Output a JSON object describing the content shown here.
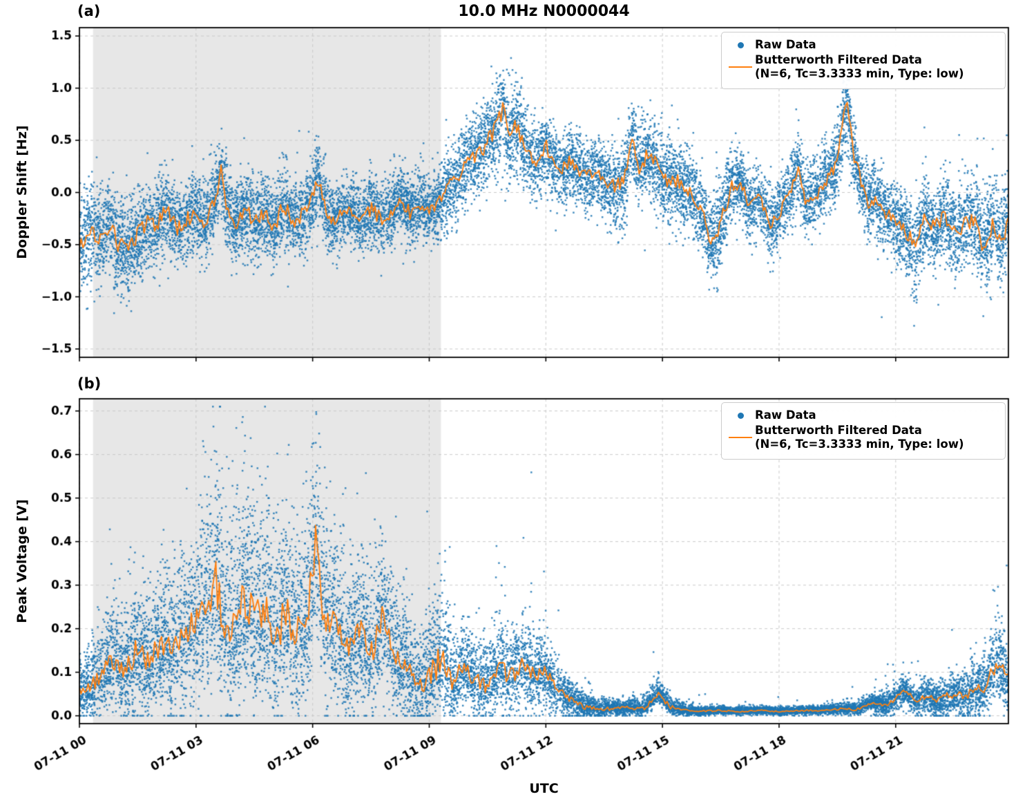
{
  "figure": {
    "title": "10.0 MHz N0000044",
    "xlabel": "UTC",
    "panel_a_label": "(a)",
    "panel_b_label": "(b)"
  },
  "colors": {
    "raw": "#1f77b4",
    "filtered": "#ff7f0e",
    "shade": "#e7e7e7",
    "grid": "#c9c9c9",
    "axis": "#000000",
    "text": "#000000"
  },
  "legend": {
    "raw_label": "Raw Data",
    "filtered_line1": "Butterworth Filtered Data",
    "filtered_line2": "(N=6, Tc=3.3333 min, Type: low)"
  },
  "x_axis": {
    "range_hours": [
      0,
      23.9
    ],
    "ticks": [
      {
        "hour": 0,
        "label": "07-11 00"
      },
      {
        "hour": 3,
        "label": "07-11 03"
      },
      {
        "hour": 6,
        "label": "07-11 06"
      },
      {
        "hour": 9,
        "label": "07-11 09"
      },
      {
        "hour": 12,
        "label": "07-11 12"
      },
      {
        "hour": 15,
        "label": "07-11 15"
      },
      {
        "hour": 18,
        "label": "07-11 18"
      },
      {
        "hour": 21,
        "label": "07-11 21"
      }
    ]
  },
  "chart_data": [
    {
      "type": "scatter+line",
      "panel_label": "(a)",
      "ylabel": "Doppler Shift [Hz]",
      "ylim": [
        -1.58,
        1.58
      ],
      "yticks": [
        {
          "v": 1.5,
          "label": "1.5"
        },
        {
          "v": 1.0,
          "label": "1.0"
        },
        {
          "v": 0.5,
          "label": "0.5"
        },
        {
          "v": 0.0,
          "label": "0.0"
        },
        {
          "v": -0.5,
          "label": "−0.5"
        },
        {
          "v": -1.0,
          "label": "−1.0"
        },
        {
          "v": -1.5,
          "label": "−1.5"
        }
      ],
      "shade_hours": [
        0.35,
        9.3
      ],
      "series": [
        "Raw Data",
        "Butterworth Filtered Data (N=6, Tc=3.3333 min, Type: low)"
      ],
      "raw_points": 15000,
      "sigma_factor": 0.55,
      "clip": [
        -1.5,
        1.5
      ],
      "line_jitter_factor": 0.22,
      "line_points": [
        [
          0.0,
          -0.55
        ],
        [
          0.25,
          -0.35
        ],
        [
          0.5,
          -0.45
        ],
        [
          0.75,
          -0.3
        ],
        [
          1.0,
          -0.5
        ],
        [
          1.25,
          -0.55
        ],
        [
          1.5,
          -0.4
        ],
        [
          1.75,
          -0.3
        ],
        [
          2.0,
          -0.3
        ],
        [
          2.25,
          -0.15
        ],
        [
          2.5,
          -0.35
        ],
        [
          2.75,
          -0.25
        ],
        [
          3.0,
          -0.2
        ],
        [
          3.25,
          -0.3
        ],
        [
          3.5,
          -0.05
        ],
        [
          3.65,
          0.2
        ],
        [
          3.8,
          -0.15
        ],
        [
          4.0,
          -0.3
        ],
        [
          4.25,
          -0.15
        ],
        [
          4.5,
          -0.3
        ],
        [
          4.75,
          -0.2
        ],
        [
          5.0,
          -0.35
        ],
        [
          5.25,
          -0.1
        ],
        [
          5.5,
          -0.3
        ],
        [
          5.75,
          -0.2
        ],
        [
          6.0,
          -0.05
        ],
        [
          6.15,
          0.15
        ],
        [
          6.3,
          -0.1
        ],
        [
          6.5,
          -0.3
        ],
        [
          6.75,
          -0.2
        ],
        [
          7.0,
          -0.15
        ],
        [
          7.25,
          -0.3
        ],
        [
          7.5,
          -0.15
        ],
        [
          7.75,
          -0.25
        ],
        [
          8.0,
          -0.2
        ],
        [
          8.25,
          -0.05
        ],
        [
          8.5,
          -0.2
        ],
        [
          8.75,
          -0.1
        ],
        [
          9.0,
          -0.2
        ],
        [
          9.25,
          -0.1
        ],
        [
          9.5,
          0.05
        ],
        [
          9.75,
          0.15
        ],
        [
          10.0,
          0.3
        ],
        [
          10.25,
          0.35
        ],
        [
          10.5,
          0.5
        ],
        [
          10.75,
          0.65
        ],
        [
          10.9,
          0.8
        ],
        [
          11.05,
          0.55
        ],
        [
          11.2,
          0.7
        ],
        [
          11.4,
          0.5
        ],
        [
          11.6,
          0.35
        ],
        [
          11.8,
          0.3
        ],
        [
          12.0,
          0.45
        ],
        [
          12.2,
          0.3
        ],
        [
          12.4,
          0.2
        ],
        [
          12.6,
          0.3
        ],
        [
          12.8,
          0.25
        ],
        [
          13.0,
          0.15
        ],
        [
          13.25,
          0.2
        ],
        [
          13.5,
          0.1
        ],
        [
          13.75,
          0.05
        ],
        [
          14.0,
          0.1
        ],
        [
          14.2,
          0.5
        ],
        [
          14.4,
          0.25
        ],
        [
          14.6,
          0.35
        ],
        [
          14.8,
          0.3
        ],
        [
          15.0,
          0.1
        ],
        [
          15.25,
          0.15
        ],
        [
          15.5,
          0.05
        ],
        [
          15.75,
          0.0
        ],
        [
          16.0,
          -0.2
        ],
        [
          16.25,
          -0.45
        ],
        [
          16.5,
          -0.3
        ],
        [
          16.75,
          0.05
        ],
        [
          17.0,
          0.1
        ],
        [
          17.25,
          -0.15
        ],
        [
          17.5,
          -0.05
        ],
        [
          17.75,
          -0.3
        ],
        [
          18.0,
          -0.2
        ],
        [
          18.25,
          0.0
        ],
        [
          18.5,
          0.2
        ],
        [
          18.7,
          -0.1
        ],
        [
          19.0,
          0.0
        ],
        [
          19.25,
          0.15
        ],
        [
          19.5,
          0.3
        ],
        [
          19.75,
          0.95
        ],
        [
          19.9,
          0.4
        ],
        [
          20.1,
          0.1
        ],
        [
          20.3,
          -0.1
        ],
        [
          20.5,
          -0.05
        ],
        [
          20.75,
          -0.2
        ],
        [
          21.0,
          -0.25
        ],
        [
          21.25,
          -0.35
        ],
        [
          21.5,
          -0.55
        ],
        [
          21.75,
          -0.25
        ],
        [
          22.0,
          -0.35
        ],
        [
          22.25,
          -0.2
        ],
        [
          22.5,
          -0.4
        ],
        [
          22.75,
          -0.3
        ],
        [
          23.0,
          -0.25
        ],
        [
          23.25,
          -0.5
        ],
        [
          23.5,
          -0.3
        ],
        [
          23.75,
          -0.45
        ],
        [
          23.9,
          -0.25
        ]
      ],
      "spread_points": [
        [
          0,
          0.45
        ],
        [
          1,
          0.4
        ],
        [
          2,
          0.35
        ],
        [
          3,
          0.35
        ],
        [
          4,
          0.35
        ],
        [
          5,
          0.35
        ],
        [
          6,
          0.35
        ],
        [
          7,
          0.3
        ],
        [
          8,
          0.3
        ],
        [
          9,
          0.3
        ],
        [
          9.5,
          0.35
        ],
        [
          10,
          0.35
        ],
        [
          11,
          0.4
        ],
        [
          12,
          0.3
        ],
        [
          13,
          0.3
        ],
        [
          14,
          0.35
        ],
        [
          15,
          0.35
        ],
        [
          16,
          0.35
        ],
        [
          16.5,
          0.4
        ],
        [
          17,
          0.3
        ],
        [
          18,
          0.3
        ],
        [
          19,
          0.3
        ],
        [
          19.8,
          0.35
        ],
        [
          20,
          0.3
        ],
        [
          21,
          0.35
        ],
        [
          21.5,
          0.4
        ],
        [
          22,
          0.35
        ],
        [
          23,
          0.4
        ],
        [
          23.9,
          0.4
        ]
      ]
    },
    {
      "type": "scatter+line",
      "panel_label": "(b)",
      "ylabel": "Peak Voltage [V]",
      "ylim": [
        -0.018,
        0.728
      ],
      "yticks": [
        {
          "v": 0.7,
          "label": "0.7"
        },
        {
          "v": 0.6,
          "label": "0.6"
        },
        {
          "v": 0.5,
          "label": "0.5"
        },
        {
          "v": 0.4,
          "label": "0.4"
        },
        {
          "v": 0.3,
          "label": "0.3"
        },
        {
          "v": 0.2,
          "label": "0.2"
        },
        {
          "v": 0.1,
          "label": "0.1"
        },
        {
          "v": 0.0,
          "label": "0.0"
        }
      ],
      "shade_hours": [
        0.35,
        9.3
      ],
      "series": [
        "Raw Data",
        "Butterworth Filtered Data (N=6, Tc=3.3333 min, Type: low)"
      ],
      "raw_points": 15000,
      "sigma_factor": 0.8,
      "clip": [
        0.0,
        0.71
      ],
      "line_jitter_factor": 0.3,
      "line_points": [
        [
          0.0,
          0.05
        ],
        [
          0.3,
          0.07
        ],
        [
          0.6,
          0.1
        ],
        [
          0.9,
          0.13
        ],
        [
          1.2,
          0.1
        ],
        [
          1.5,
          0.16
        ],
        [
          1.8,
          0.12
        ],
        [
          2.1,
          0.17
        ],
        [
          2.4,
          0.14
        ],
        [
          2.7,
          0.19
        ],
        [
          3.0,
          0.21
        ],
        [
          3.3,
          0.27
        ],
        [
          3.5,
          0.31
        ],
        [
          3.7,
          0.22
        ],
        [
          4.0,
          0.2
        ],
        [
          4.3,
          0.28
        ],
        [
          4.5,
          0.2
        ],
        [
          4.8,
          0.26
        ],
        [
          5.0,
          0.17
        ],
        [
          5.3,
          0.23
        ],
        [
          5.6,
          0.19
        ],
        [
          5.9,
          0.25
        ],
        [
          6.1,
          0.42
        ],
        [
          6.3,
          0.2
        ],
        [
          6.6,
          0.22
        ],
        [
          6.9,
          0.15
        ],
        [
          7.2,
          0.19
        ],
        [
          7.5,
          0.14
        ],
        [
          7.8,
          0.24
        ],
        [
          8.1,
          0.14
        ],
        [
          8.4,
          0.12
        ],
        [
          8.7,
          0.07
        ],
        [
          9.0,
          0.09
        ],
        [
          9.3,
          0.13
        ],
        [
          9.6,
          0.08
        ],
        [
          9.9,
          0.11
        ],
        [
          10.2,
          0.08
        ],
        [
          10.5,
          0.07
        ],
        [
          10.8,
          0.11
        ],
        [
          11.1,
          0.09
        ],
        [
          11.4,
          0.12
        ],
        [
          11.7,
          0.09
        ],
        [
          12.0,
          0.1
        ],
        [
          12.3,
          0.06
        ],
        [
          12.6,
          0.04
        ],
        [
          13.0,
          0.02
        ],
        [
          13.5,
          0.015
        ],
        [
          14.0,
          0.02
        ],
        [
          14.5,
          0.015
        ],
        [
          14.9,
          0.05
        ],
        [
          15.2,
          0.02
        ],
        [
          15.6,
          0.012
        ],
        [
          16.0,
          0.01
        ],
        [
          16.5,
          0.012
        ],
        [
          17.0,
          0.01
        ],
        [
          17.5,
          0.012
        ],
        [
          18.0,
          0.01
        ],
        [
          18.5,
          0.012
        ],
        [
          19.0,
          0.012
        ],
        [
          19.5,
          0.015
        ],
        [
          20.0,
          0.015
        ],
        [
          20.4,
          0.03
        ],
        [
          20.8,
          0.025
        ],
        [
          21.2,
          0.06
        ],
        [
          21.5,
          0.035
        ],
        [
          21.8,
          0.045
        ],
        [
          22.1,
          0.035
        ],
        [
          22.4,
          0.05
        ],
        [
          22.7,
          0.045
        ],
        [
          23.0,
          0.055
        ],
        [
          23.3,
          0.07
        ],
        [
          23.6,
          0.12
        ],
        [
          23.9,
          0.08
        ]
      ],
      "spread_up_points": [
        [
          0,
          0.06
        ],
        [
          1,
          0.09
        ],
        [
          2,
          0.1
        ],
        [
          3,
          0.14
        ],
        [
          3.5,
          0.17
        ],
        [
          4,
          0.16
        ],
        [
          4.6,
          0.2
        ],
        [
          5,
          0.15
        ],
        [
          5.5,
          0.15
        ],
        [
          6.1,
          0.16
        ],
        [
          6.5,
          0.13
        ],
        [
          7,
          0.12
        ],
        [
          7.5,
          0.12
        ],
        [
          8,
          0.1
        ],
        [
          8.7,
          0.07
        ],
        [
          9.3,
          0.12
        ],
        [
          9.6,
          0.08
        ],
        [
          10,
          0.06
        ],
        [
          10.8,
          0.07
        ],
        [
          11.4,
          0.07
        ],
        [
          12,
          0.05
        ],
        [
          12.6,
          0.03
        ],
        [
          13,
          0.02
        ],
        [
          14,
          0.01
        ],
        [
          14.9,
          0.025
        ],
        [
          15.5,
          0.01
        ],
        [
          16,
          0.007
        ],
        [
          17,
          0.006
        ],
        [
          18,
          0.006
        ],
        [
          19,
          0.007
        ],
        [
          20,
          0.01
        ],
        [
          21,
          0.02
        ],
        [
          21.5,
          0.025
        ],
        [
          22,
          0.025
        ],
        [
          23,
          0.04
        ],
        [
          23.6,
          0.07
        ],
        [
          23.9,
          0.06
        ]
      ],
      "spread_down_points": [
        [
          0,
          0.03
        ],
        [
          1,
          0.07
        ],
        [
          2,
          0.08
        ],
        [
          3,
          0.12
        ],
        [
          4,
          0.13
        ],
        [
          5,
          0.12
        ],
        [
          6,
          0.13
        ],
        [
          7,
          0.1
        ],
        [
          8,
          0.09
        ],
        [
          9,
          0.06
        ],
        [
          10,
          0.05
        ],
        [
          11,
          0.06
        ],
        [
          12,
          0.05
        ],
        [
          13,
          0.015
        ],
        [
          14,
          0.01
        ],
        [
          15,
          0.01
        ],
        [
          16,
          0.006
        ],
        [
          17,
          0.005
        ],
        [
          18,
          0.005
        ],
        [
          19,
          0.006
        ],
        [
          20,
          0.008
        ],
        [
          21,
          0.02
        ],
        [
          22,
          0.025
        ],
        [
          23,
          0.035
        ],
        [
          23.9,
          0.05
        ]
      ]
    }
  ]
}
